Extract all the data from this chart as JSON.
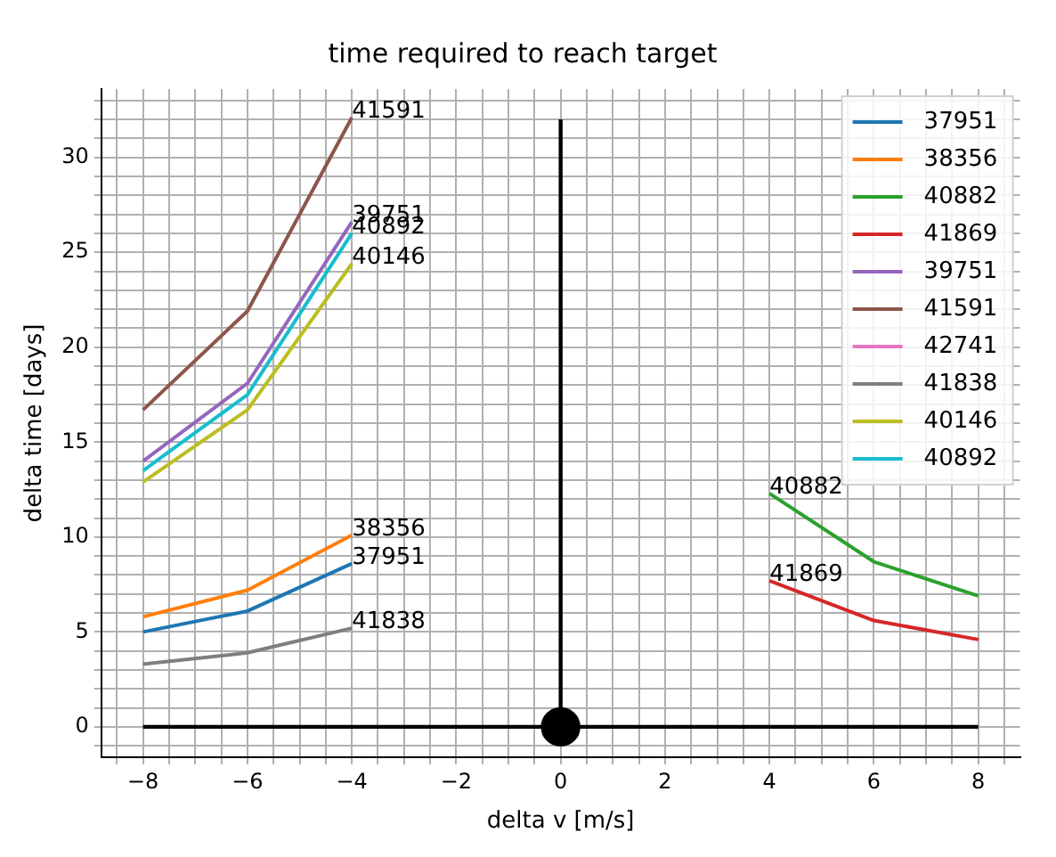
{
  "chart_data": {
    "type": "line",
    "title": "time required to reach target",
    "xlabel": "delta v [m/s]",
    "ylabel": "delta time [days]",
    "xlim": [
      -8.8,
      8.8
    ],
    "ylim": [
      -1.6,
      33.6
    ],
    "xticks": [
      {
        "value": -8.5,
        "label": null
      },
      -8,
      {
        "value": -7.5,
        "label": null
      },
      {
        "value": -7,
        "label": null
      },
      {
        "value": -6.5,
        "label": null
      },
      -6,
      {
        "value": -5.5,
        "label": null
      },
      {
        "value": -5,
        "label": null
      },
      {
        "value": -4.5,
        "label": null
      },
      -4,
      {
        "value": -3.5,
        "label": null
      },
      {
        "value": -3,
        "label": null
      },
      {
        "value": -2.5,
        "label": null
      },
      -2,
      {
        "value": -1.5,
        "label": null
      },
      {
        "value": -1,
        "label": null
      },
      {
        "value": -0.5,
        "label": null
      },
      0,
      {
        "value": 0.5,
        "label": null
      },
      {
        "value": 1,
        "label": null
      },
      {
        "value": 1.5,
        "label": null
      },
      2,
      {
        "value": 2.5,
        "label": null
      },
      {
        "value": 3,
        "label": null
      },
      {
        "value": 3.5,
        "label": null
      },
      4,
      {
        "value": 4.5,
        "label": null
      },
      {
        "value": 5,
        "label": null
      },
      {
        "value": 5.5,
        "label": null
      },
      6,
      {
        "value": 6.5,
        "label": null
      },
      {
        "value": 7,
        "label": null
      },
      {
        "value": 7.5,
        "label": null
      },
      8,
      {
        "value": 8.5,
        "label": null
      }
    ],
    "yticks": [
      {
        "value": -1,
        "label": null
      },
      0,
      {
        "value": 1,
        "label": null
      },
      {
        "value": 2,
        "label": null
      },
      {
        "value": 3,
        "label": null
      },
      {
        "value": 4,
        "label": null
      },
      5,
      {
        "value": 6,
        "label": null
      },
      {
        "value": 7,
        "label": null
      },
      {
        "value": 8,
        "label": null
      },
      {
        "value": 9,
        "label": null
      },
      10,
      {
        "value": 11,
        "label": null
      },
      {
        "value": 12,
        "label": null
      },
      {
        "value": 13,
        "label": null
      },
      {
        "value": 14,
        "label": null
      },
      15,
      {
        "value": 16,
        "label": null
      },
      {
        "value": 17,
        "label": null
      },
      {
        "value": 18,
        "label": null
      },
      {
        "value": 19,
        "label": null
      },
      20,
      {
        "value": 21,
        "label": null
      },
      {
        "value": 22,
        "label": null
      },
      {
        "value": 23,
        "label": null
      },
      {
        "value": 24,
        "label": null
      },
      25,
      {
        "value": 26,
        "label": null
      },
      {
        "value": 27,
        "label": null
      },
      {
        "value": 28,
        "label": null
      },
      {
        "value": 29,
        "label": null
      },
      30,
      {
        "value": 31,
        "label": null
      },
      {
        "value": 32,
        "label": null
      },
      {
        "value": 33,
        "label": null
      }
    ],
    "grid": true,
    "legend": "top right",
    "marker": "none",
    "line_style": "solid",
    "series": [
      {
        "name": "37951",
        "color": "#1f77b4",
        "x": [
          -8,
          -6,
          -4
        ],
        "values": [
          5.0,
          6.1,
          8.6
        ]
      },
      {
        "name": "38356",
        "color": "#ff7f0e",
        "x": [
          -8,
          -6,
          -4
        ],
        "values": [
          5.8,
          7.2,
          10.1
        ]
      },
      {
        "name": "40882",
        "color": "#2ca02c",
        "x": [
          4,
          6,
          8
        ],
        "values": [
          12.3,
          8.7,
          6.9
        ]
      },
      {
        "name": "41869",
        "color": "#d62728",
        "x": [
          4,
          6,
          8
        ],
        "values": [
          7.7,
          5.6,
          4.6
        ]
      },
      {
        "name": "39751",
        "color": "#9467bd",
        "x": [
          -8,
          -6,
          -4
        ],
        "values": [
          14.0,
          18.1,
          26.6
        ]
      },
      {
        "name": "41591",
        "color": "#8c564b",
        "x": [
          -8,
          -6,
          -4
        ],
        "values": [
          16.7,
          21.9,
          32.1
        ]
      },
      {
        "name": "42741",
        "color": "#e377c2"
      },
      {
        "name": "41838",
        "color": "#7f7f7f",
        "x": [
          -8,
          -6,
          -4
        ],
        "values": [
          3.3,
          3.9,
          5.2
        ]
      },
      {
        "name": "40146",
        "color": "#bcbd22",
        "x": [
          -8,
          -6,
          -4
        ],
        "values": [
          12.9,
          16.7,
          24.4
        ]
      },
      {
        "name": "40892",
        "color": "#17becf",
        "x": [
          -8,
          -6,
          -4
        ],
        "values": [
          13.5,
          17.5,
          26.0
        ]
      },
      {
        "type": "line",
        "color": "#000000",
        "x": [
          0,
          0
        ],
        "values": [
          0,
          32
        ]
      },
      {
        "type": "line",
        "color": "#000000",
        "x": [
          -8,
          8
        ],
        "values": [
          0,
          0
        ]
      },
      {
        "type": "scatter",
        "color": "#000000",
        "marker": "circle",
        "x": [
          0
        ],
        "values": [
          0
        ]
      }
    ]
  }
}
